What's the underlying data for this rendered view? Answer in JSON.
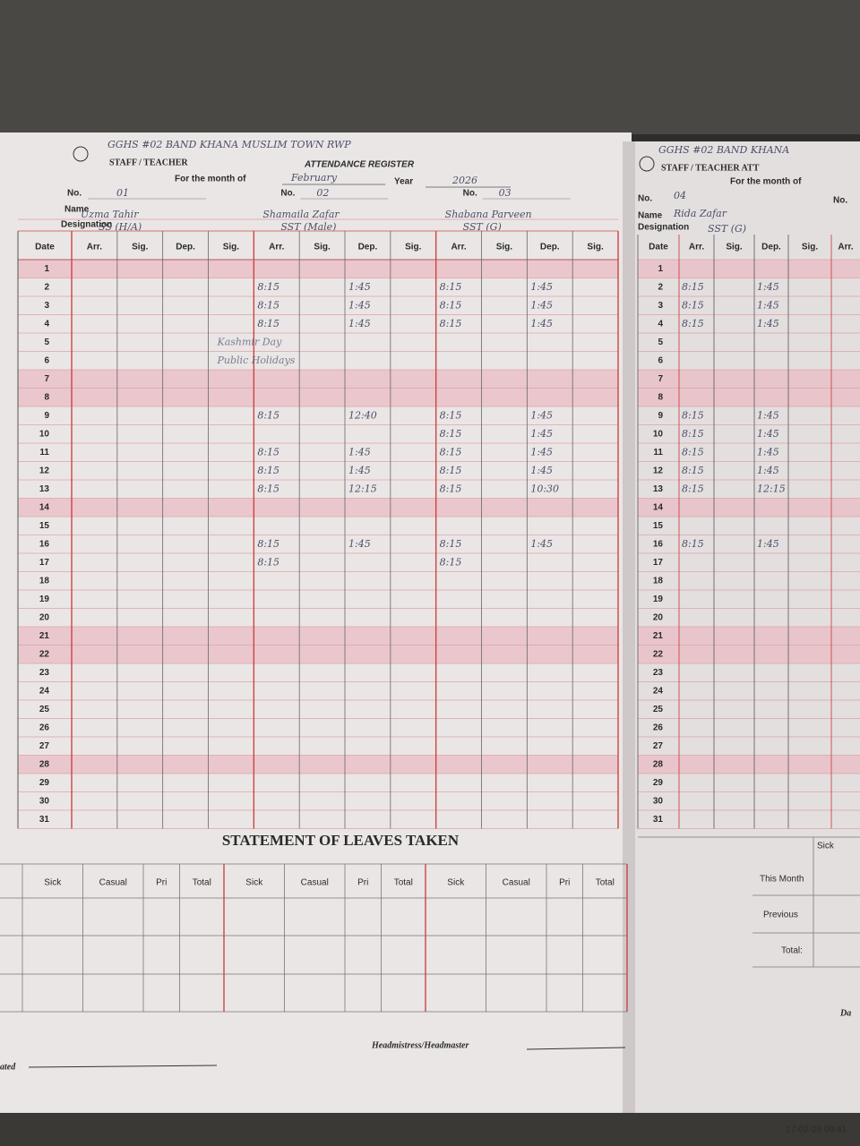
{
  "photo_timestamp": "17-02-26 09:41",
  "left_page": {
    "school": "GGHS #02 BAND KHANA MUSLIM TOWN RWP",
    "title_a": "STAFF / TEACHER",
    "title_b": "ATTENDANCE REGISTER",
    "month_label": "For the month of",
    "month": "February",
    "year_label": "Year",
    "year": "2026",
    "no_label": "No.",
    "name_label": "Name",
    "designation_label": "Designation",
    "staff": [
      {
        "no": "01",
        "name": "Uzma Tahir",
        "designation": "SS (H/A)"
      },
      {
        "no": "02",
        "name": "Shamaila Zafar",
        "designation": "SST (Male)"
      },
      {
        "no": "03",
        "name": "Shabana Parveen",
        "designation": "SST (G)"
      }
    ],
    "columns": [
      "Date",
      "Arr.",
      "Sig.",
      "Dep.",
      "Sig."
    ],
    "rows": [
      {
        "date": 1
      },
      {
        "date": 2,
        "t2": [
          "8:15",
          "1:45"
        ],
        "t3": [
          "8:15",
          "1:45"
        ]
      },
      {
        "date": 3,
        "t2": [
          "8:15",
          "1:45"
        ],
        "t3": [
          "8:15",
          "1:45"
        ]
      },
      {
        "date": 4,
        "t2": [
          "8:15",
          "1:45"
        ],
        "t3": [
          "8:15",
          "1:45"
        ]
      },
      {
        "date": 5,
        "note": "Kashmir Day"
      },
      {
        "date": 6,
        "note": "Public Holidays"
      },
      {
        "date": 7
      },
      {
        "date": 8
      },
      {
        "date": 9,
        "t2": [
          "8:15",
          "12:40"
        ],
        "t3": [
          "8:15",
          "1:45"
        ]
      },
      {
        "date": 10,
        "t3": [
          "8:15",
          "1:45"
        ]
      },
      {
        "date": 11,
        "t2": [
          "8:15",
          "1:45"
        ],
        "t3": [
          "8:15",
          "1:45"
        ]
      },
      {
        "date": 12,
        "t2": [
          "8:15",
          "1:45"
        ],
        "t3": [
          "8:15",
          "1:45"
        ]
      },
      {
        "date": 13,
        "t2": [
          "8:15",
          "12:15"
        ],
        "t3": [
          "8:15",
          "10:30"
        ]
      },
      {
        "date": 14
      },
      {
        "date": 15
      },
      {
        "date": 16,
        "t2": [
          "8:15",
          "1:45"
        ],
        "t3": [
          "8:15",
          "1:45"
        ]
      },
      {
        "date": 17,
        "t2": [
          "8:15"
        ],
        "t3": [
          "8:15"
        ]
      },
      {
        "date": 18
      },
      {
        "date": 19
      },
      {
        "date": 20
      },
      {
        "date": 21
      },
      {
        "date": 22
      },
      {
        "date": 23
      },
      {
        "date": 24
      },
      {
        "date": 25
      },
      {
        "date": 26
      },
      {
        "date": 27
      },
      {
        "date": 28
      },
      {
        "date": 29
      },
      {
        "date": 30
      },
      {
        "date": 31
      }
    ],
    "leaves": {
      "title": "STATEMENT OF LEAVES TAKEN",
      "columns": [
        "Sick",
        "Casual",
        "Pri",
        "Total"
      ]
    },
    "signature_label": "Headmistress/Headmaster",
    "dated_label": "ated"
  },
  "right_page": {
    "school": "GGHS #02 BAND KHANA",
    "title": "STAFF / TEACHER ATT",
    "month_label": "For the month of",
    "no_label": "No.",
    "no": "04",
    "name_label": "Name",
    "name": "Rida Zafar",
    "designation_label": "Designation",
    "designation": "SST (G)",
    "columns": [
      "Date",
      "Arr.",
      "Sig.",
      "Dep.",
      "Sig.",
      "Arr."
    ],
    "rows": [
      {
        "date": 1
      },
      {
        "date": 2,
        "t4": [
          "8:15",
          "1:45"
        ]
      },
      {
        "date": 3,
        "t4": [
          "8:15",
          "1:45"
        ]
      },
      {
        "date": 4,
        "t4": [
          "8:15",
          "1:45"
        ]
      },
      {
        "date": 5
      },
      {
        "date": 6
      },
      {
        "date": 7
      },
      {
        "date": 8
      },
      {
        "date": 9,
        "t4": [
          "8:15",
          "1:45"
        ]
      },
      {
        "date": 10,
        "t4": [
          "8:15",
          "1:45"
        ]
      },
      {
        "date": 11,
        "t4": [
          "8:15",
          "1:45"
        ]
      },
      {
        "date": 12,
        "t4": [
          "8:15",
          "1:45"
        ]
      },
      {
        "date": 13,
        "t4": [
          "8:15",
          "12:15"
        ]
      },
      {
        "date": 14
      },
      {
        "date": 15
      },
      {
        "date": 16,
        "t4": [
          "8:15",
          "1:45"
        ]
      },
      {
        "date": 17
      },
      {
        "date": 18
      },
      {
        "date": 19
      },
      {
        "date": 20
      },
      {
        "date": 21
      },
      {
        "date": 22
      },
      {
        "date": 23
      },
      {
        "date": 24
      },
      {
        "date": 25
      },
      {
        "date": 26
      },
      {
        "date": 27
      },
      {
        "date": 28
      },
      {
        "date": 29
      },
      {
        "date": 30
      },
      {
        "date": 31
      }
    ],
    "leaves_sick": "Sick",
    "this_month": "This Month",
    "previous": "Previous",
    "total": "Total:",
    "dated_cut": "Da"
  }
}
